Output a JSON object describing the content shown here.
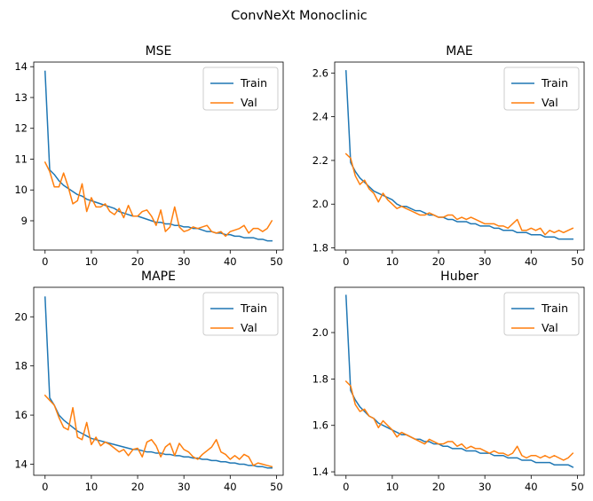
{
  "suptitle": "ConvNeXt Monoclinic",
  "colors": {
    "train": "#1f77b4",
    "val": "#ff7f0e"
  },
  "chart_data": [
    {
      "type": "line",
      "title": "MSE",
      "xlim": [
        -2.45,
        51.45
      ],
      "ylim": [
        8.05,
        14.15
      ],
      "xticks": [
        0,
        10,
        20,
        30,
        40,
        50
      ],
      "yticks": [
        9,
        10,
        11,
        12,
        13,
        14
      ],
      "ytick_labels": [
        "9",
        "10",
        "11",
        "12",
        "13",
        "14"
      ],
      "legend": "top-right",
      "series": [
        {
          "name": "Train",
          "color": "#1f77b4",
          "values": [
            13.85,
            10.65,
            10.5,
            10.3,
            10.15,
            10.05,
            9.95,
            9.85,
            9.8,
            9.7,
            9.65,
            9.6,
            9.55,
            9.5,
            9.45,
            9.4,
            9.3,
            9.25,
            9.2,
            9.15,
            9.15,
            9.1,
            9.05,
            9.0,
            8.95,
            8.95,
            8.9,
            8.9,
            8.85,
            8.85,
            8.8,
            8.8,
            8.75,
            8.75,
            8.7,
            8.65,
            8.65,
            8.6,
            8.6,
            8.55,
            8.55,
            8.5,
            8.5,
            8.45,
            8.45,
            8.45,
            8.4,
            8.4,
            8.35,
            8.35
          ]
        },
        {
          "name": "Val",
          "color": "#ff7f0e",
          "values": [
            10.9,
            10.6,
            10.1,
            10.1,
            10.55,
            10.1,
            9.55,
            9.65,
            10.2,
            9.3,
            9.75,
            9.45,
            9.45,
            9.55,
            9.3,
            9.2,
            9.4,
            9.1,
            9.5,
            9.15,
            9.15,
            9.3,
            9.35,
            9.15,
            8.85,
            9.35,
            8.65,
            8.8,
            9.45,
            8.8,
            8.65,
            8.7,
            8.8,
            8.75,
            8.8,
            8.85,
            8.65,
            8.6,
            8.65,
            8.5,
            8.65,
            8.7,
            8.75,
            8.85,
            8.6,
            8.75,
            8.75,
            8.65,
            8.75,
            9.0
          ]
        }
      ]
    },
    {
      "type": "line",
      "title": "MAE",
      "xlim": [
        -2.45,
        51.45
      ],
      "ylim": [
        1.79,
        2.65
      ],
      "xticks": [
        0,
        10,
        20,
        30,
        40,
        50
      ],
      "yticks": [
        1.8,
        2.0,
        2.2,
        2.4,
        2.6
      ],
      "ytick_labels": [
        "1.8",
        "2.0",
        "2.2",
        "2.4",
        "2.6"
      ],
      "legend": "top-right",
      "series": [
        {
          "name": "Train",
          "color": "#1f77b4",
          "values": [
            2.61,
            2.19,
            2.15,
            2.12,
            2.1,
            2.08,
            2.06,
            2.05,
            2.04,
            2.03,
            2.02,
            2.0,
            1.99,
            1.99,
            1.98,
            1.97,
            1.97,
            1.96,
            1.95,
            1.95,
            1.94,
            1.94,
            1.93,
            1.93,
            1.92,
            1.92,
            1.92,
            1.91,
            1.91,
            1.9,
            1.9,
            1.9,
            1.89,
            1.89,
            1.88,
            1.88,
            1.88,
            1.87,
            1.87,
            1.87,
            1.86,
            1.86,
            1.86,
            1.85,
            1.85,
            1.85,
            1.84,
            1.84,
            1.84,
            1.84
          ]
        },
        {
          "name": "Val",
          "color": "#ff7f0e",
          "values": [
            2.23,
            2.21,
            2.13,
            2.09,
            2.11,
            2.07,
            2.05,
            2.01,
            2.05,
            2.02,
            2.0,
            1.98,
            1.99,
            1.98,
            1.97,
            1.96,
            1.95,
            1.95,
            1.96,
            1.95,
            1.94,
            1.94,
            1.95,
            1.95,
            1.93,
            1.94,
            1.93,
            1.94,
            1.93,
            1.92,
            1.91,
            1.91,
            1.91,
            1.9,
            1.9,
            1.89,
            1.91,
            1.93,
            1.88,
            1.88,
            1.89,
            1.88,
            1.89,
            1.86,
            1.88,
            1.87,
            1.88,
            1.87,
            1.88,
            1.89
          ]
        }
      ]
    },
    {
      "type": "line",
      "title": "MAPE",
      "xlim": [
        -2.45,
        51.45
      ],
      "ylim": [
        13.55,
        21.2
      ],
      "xticks": [
        0,
        10,
        20,
        30,
        40,
        50
      ],
      "yticks": [
        14,
        16,
        18,
        20
      ],
      "ytick_labels": [
        "14",
        "16",
        "18",
        "20"
      ],
      "legend": "top-right",
      "series": [
        {
          "name": "Train",
          "color": "#1f77b4",
          "values": [
            20.8,
            16.7,
            16.4,
            16.0,
            15.8,
            15.65,
            15.5,
            15.35,
            15.25,
            15.15,
            15.05,
            15.0,
            14.95,
            14.9,
            14.85,
            14.8,
            14.75,
            14.7,
            14.65,
            14.6,
            14.6,
            14.55,
            14.5,
            14.5,
            14.45,
            14.45,
            14.4,
            14.4,
            14.35,
            14.35,
            14.3,
            14.3,
            14.25,
            14.25,
            14.2,
            14.2,
            14.15,
            14.15,
            14.1,
            14.1,
            14.05,
            14.05,
            14.0,
            14.0,
            13.95,
            13.95,
            13.9,
            13.9,
            13.85,
            13.85
          ]
        },
        {
          "name": "Val",
          "color": "#ff7f0e",
          "values": [
            16.8,
            16.6,
            16.4,
            15.9,
            15.5,
            15.4,
            16.3,
            15.1,
            15.0,
            15.7,
            14.8,
            15.1,
            14.75,
            14.9,
            14.8,
            14.65,
            14.5,
            14.6,
            14.35,
            14.6,
            14.65,
            14.3,
            14.9,
            15.0,
            14.75,
            14.3,
            14.7,
            14.85,
            14.35,
            14.85,
            14.6,
            14.5,
            14.3,
            14.2,
            14.4,
            14.55,
            14.7,
            15.0,
            14.5,
            14.4,
            14.2,
            14.35,
            14.2,
            14.4,
            14.3,
            13.95,
            14.05,
            14.0,
            13.95,
            13.9
          ]
        }
      ]
    },
    {
      "type": "line",
      "title": "Huber",
      "xlim": [
        -2.45,
        51.45
      ],
      "ylim": [
        1.385,
        2.195
      ],
      "xticks": [
        0,
        10,
        20,
        30,
        40,
        50
      ],
      "yticks": [
        1.4,
        1.6,
        1.8,
        2.0
      ],
      "ytick_labels": [
        "1.4",
        "1.6",
        "1.8",
        "2.0"
      ],
      "legend": "top-right",
      "series": [
        {
          "name": "Train",
          "color": "#1f77b4",
          "values": [
            2.16,
            1.75,
            1.71,
            1.68,
            1.66,
            1.64,
            1.63,
            1.61,
            1.6,
            1.59,
            1.58,
            1.57,
            1.56,
            1.56,
            1.55,
            1.54,
            1.54,
            1.53,
            1.53,
            1.52,
            1.52,
            1.51,
            1.51,
            1.5,
            1.5,
            1.5,
            1.49,
            1.49,
            1.49,
            1.48,
            1.48,
            1.48,
            1.47,
            1.47,
            1.47,
            1.46,
            1.46,
            1.46,
            1.45,
            1.45,
            1.45,
            1.44,
            1.44,
            1.44,
            1.44,
            1.43,
            1.43,
            1.43,
            1.43,
            1.42
          ]
        },
        {
          "name": "Val",
          "color": "#ff7f0e",
          "values": [
            1.79,
            1.77,
            1.69,
            1.66,
            1.67,
            1.64,
            1.63,
            1.59,
            1.62,
            1.6,
            1.58,
            1.55,
            1.57,
            1.56,
            1.55,
            1.54,
            1.53,
            1.52,
            1.54,
            1.53,
            1.52,
            1.52,
            1.53,
            1.53,
            1.51,
            1.52,
            1.5,
            1.51,
            1.5,
            1.5,
            1.49,
            1.48,
            1.49,
            1.48,
            1.48,
            1.47,
            1.48,
            1.51,
            1.47,
            1.46,
            1.47,
            1.47,
            1.46,
            1.47,
            1.46,
            1.47,
            1.46,
            1.45,
            1.46,
            1.48
          ]
        }
      ]
    }
  ]
}
